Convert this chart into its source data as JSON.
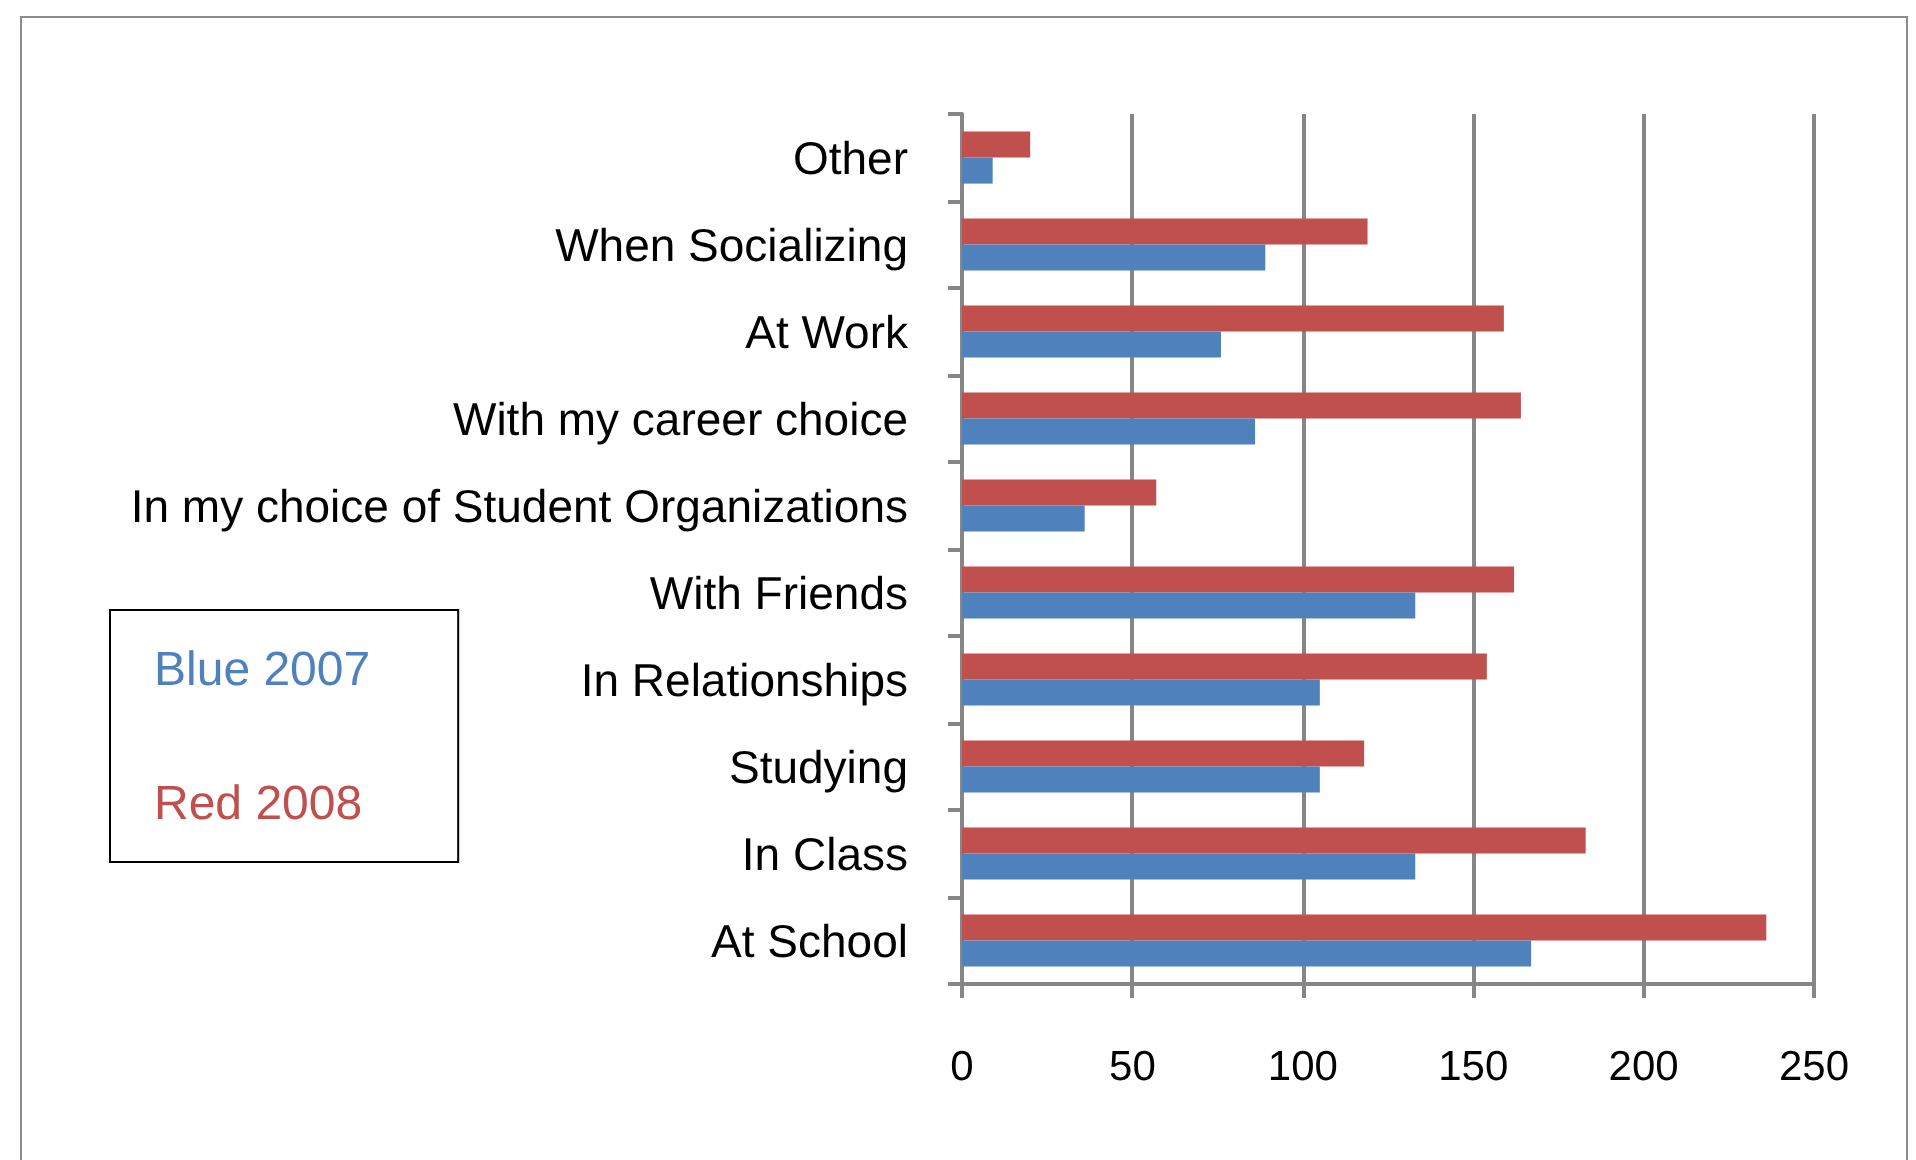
{
  "chart_data": {
    "type": "bar",
    "orientation": "horizontal",
    "categories": [
      "Other",
      "When Socializing",
      "At Work",
      "With my career choice",
      "In my choice of Student Organizations",
      "With Friends",
      "In Relationships",
      "Studying",
      "In Class",
      "At School"
    ],
    "series": [
      {
        "name": "Blue 2007",
        "color": "#4f81bd",
        "values": [
          9,
          89,
          76,
          86,
          36,
          133,
          105,
          105,
          133,
          167
        ]
      },
      {
        "name": "Red 2008",
        "color": "#c0504d",
        "values": [
          20,
          119,
          159,
          164,
          57,
          162,
          154,
          118,
          183,
          236
        ]
      }
    ],
    "xlim": [
      0,
      250
    ],
    "xticks": [
      0,
      50,
      100,
      150,
      200,
      250
    ],
    "grid": "x",
    "legend": "left"
  }
}
